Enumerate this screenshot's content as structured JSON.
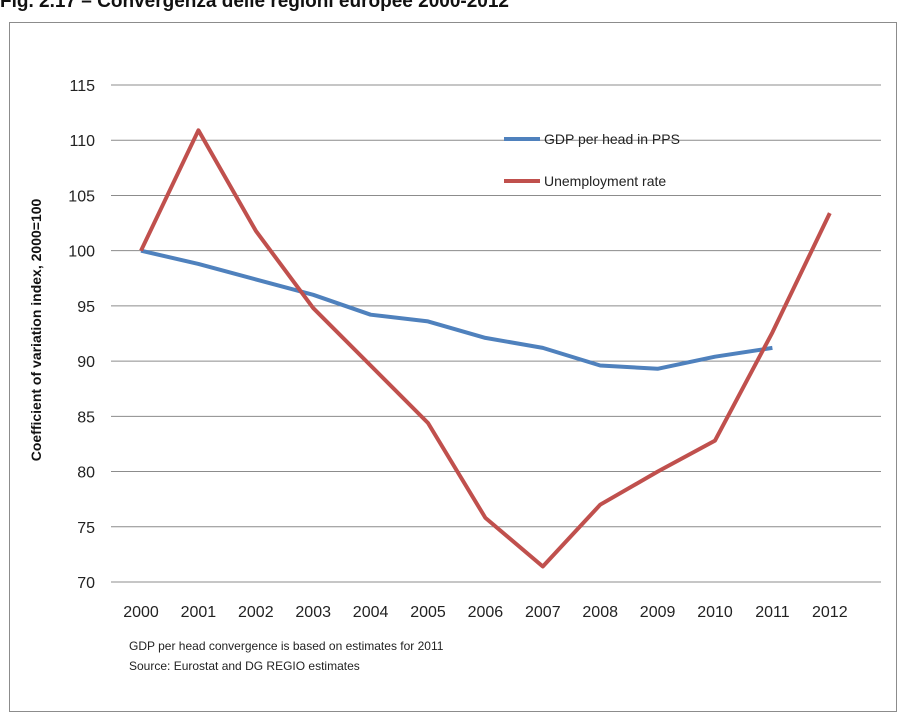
{
  "figure": {
    "title": "Fig. 2.17 – Convergenza delle regioni europee 2000-2012"
  },
  "chart_data": {
    "type": "line",
    "ylabel": "Coefficient of variation index, 2000=100",
    "xlabel": "",
    "ylim": [
      70,
      115
    ],
    "yticks": [
      70,
      75,
      80,
      85,
      90,
      95,
      100,
      105,
      110,
      115
    ],
    "x": [
      "2000",
      "2001",
      "2002",
      "2003",
      "2004",
      "2005",
      "2006",
      "2007",
      "2008",
      "2009",
      "2010",
      "2011",
      "2012"
    ],
    "grid": "horizontal",
    "legend_position": "top-right",
    "series": [
      {
        "name": "GDP per head in PPS",
        "color": "#4f81bd",
        "values": [
          100,
          98.8,
          97.4,
          96.0,
          94.2,
          93.6,
          92.1,
          91.2,
          89.6,
          89.3,
          90.4,
          91.2,
          null
        ]
      },
      {
        "name": "Unemployment rate",
        "color": "#c0504d",
        "values": [
          100,
          110.9,
          101.8,
          94.8,
          89.6,
          84.4,
          75.8,
          71.4,
          77.0,
          80.0,
          82.8,
          92.6,
          103.4
        ]
      }
    ],
    "notes": [
      "GDP per head convergence is based on estimates for 2011",
      "Source: Eurostat and DG REGIO estimates"
    ]
  }
}
